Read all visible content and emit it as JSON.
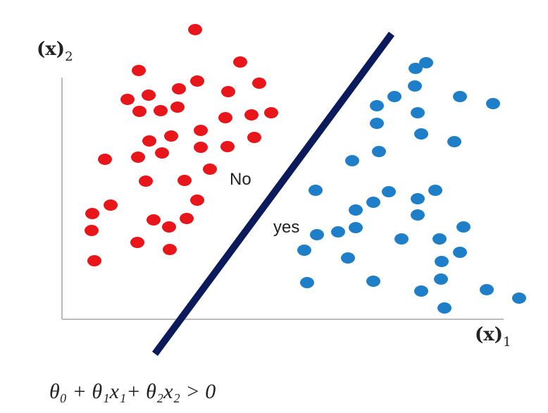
{
  "y_axis_label": {
    "base": "(x)",
    "sub": "2"
  },
  "x_axis_label": {
    "base": "(x)",
    "sub": "1"
  },
  "region_labels": {
    "upper": "No",
    "lower": "yes"
  },
  "formula": "θ₀ + θ₁x₁+ θ₂x₂ > 0"
}
